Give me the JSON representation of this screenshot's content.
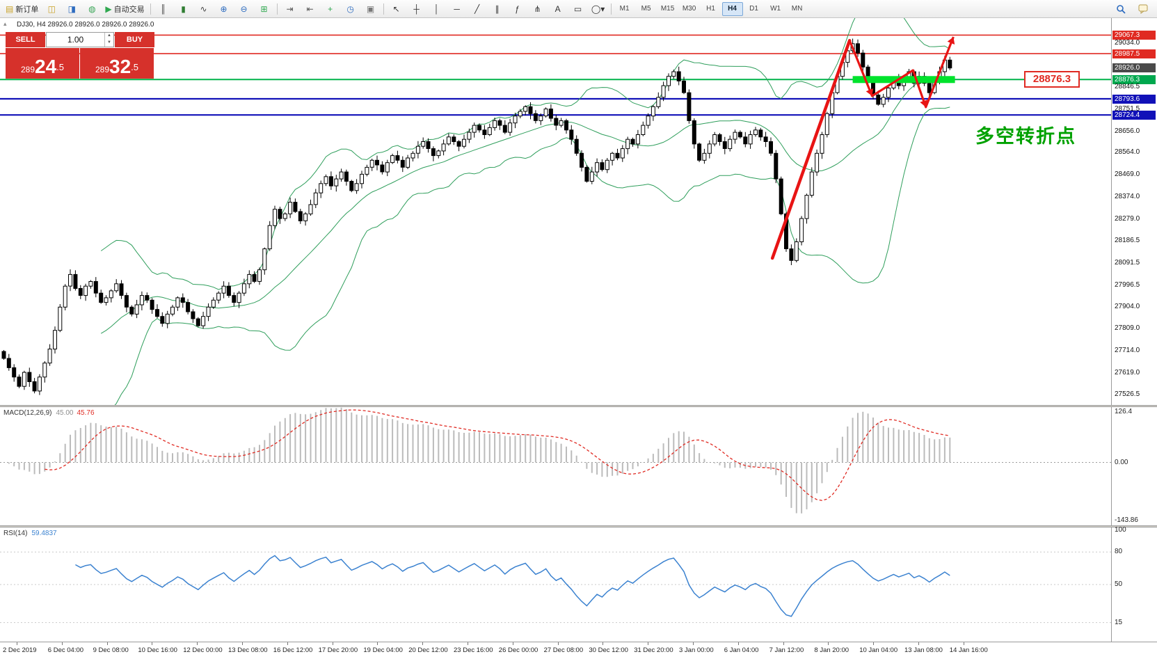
{
  "toolbar": {
    "items_left": [
      {
        "name": "new-order-button",
        "icon": "doc-plus-icon",
        "glyph": "▤",
        "glyph_color": "#c9a227",
        "label": "新订单"
      },
      {
        "name": "chart-window-button",
        "icon": "chart-window-icon",
        "glyph": "◫",
        "glyph_color": "#c9a227"
      },
      {
        "name": "profiles-button",
        "icon": "profiles-icon",
        "glyph": "◨",
        "glyph_color": "#2d6bbf"
      },
      {
        "name": "favorites-button",
        "icon": "favorites-icon",
        "glyph": "◍",
        "glyph_color": "#3aa657"
      },
      {
        "name": "auto-trading-button",
        "icon": "play-icon",
        "glyph": "▶",
        "glyph_color": "#2fa84f",
        "label": "自动交易"
      },
      {
        "sep": true
      },
      {
        "name": "bar-chart-button",
        "icon": "bar-chart-icon",
        "glyph": "║",
        "glyph_color": "#444444"
      },
      {
        "name": "candlestick-button",
        "icon": "candlestick-icon",
        "glyph": "▮",
        "glyph_color": "#2f7d32"
      },
      {
        "name": "line-chart-button",
        "icon": "line-chart-icon",
        "glyph": "∿",
        "glyph_color": "#444444"
      },
      {
        "name": "zoom-in-button",
        "icon": "zoom-in-icon",
        "glyph": "⊕",
        "glyph_color": "#2d6bbf"
      },
      {
        "name": "zoom-out-button",
        "icon": "zoom-out-icon",
        "glyph": "⊖",
        "glyph_color": "#2d6bbf"
      },
      {
        "name": "tile-windows-button",
        "icon": "tile-windows-icon",
        "glyph": "⊞",
        "glyph_color": "#2fa84f"
      },
      {
        "sep": true
      },
      {
        "name": "auto-scroll-button",
        "icon": "auto-scroll-icon",
        "glyph": "⇥",
        "glyph_color": "#555555"
      },
      {
        "name": "chart-shift-button",
        "icon": "chart-shift-icon",
        "glyph": "⇤",
        "glyph_color": "#555555"
      },
      {
        "name": "add-indicator-button",
        "icon": "plus-icon",
        "glyph": "+",
        "glyph_color": "#2fa84f"
      },
      {
        "name": "periods-button",
        "icon": "clock-icon",
        "glyph": "◷",
        "glyph_color": "#2d6bbf"
      },
      {
        "name": "templates-button",
        "icon": "template-icon",
        "glyph": "▣",
        "glyph_color": "#777777"
      },
      {
        "sep": true
      },
      {
        "name": "cursor-button",
        "icon": "cursor-icon",
        "glyph": "↖",
        "glyph_color": "#333333"
      },
      {
        "name": "crosshair-button",
        "icon": "crosshair-icon",
        "glyph": "┼",
        "glyph_color": "#333333"
      },
      {
        "name": "vline-button",
        "icon": "vertical-line-icon",
        "glyph": "│",
        "glyph_color": "#333333"
      },
      {
        "name": "hline-button",
        "icon": "horizontal-line-icon",
        "glyph": "─",
        "glyph_color": "#333333"
      },
      {
        "name": "trendline-button",
        "icon": "trendline-icon",
        "glyph": "╱",
        "glyph_color": "#333333"
      },
      {
        "name": "channel-button",
        "icon": "channel-icon",
        "glyph": "∥",
        "glyph_color": "#333333"
      },
      {
        "name": "fibonacci-button",
        "icon": "fibonacci-icon",
        "glyph": "ƒ",
        "glyph_color": "#333333"
      },
      {
        "name": "pitchfork-button",
        "icon": "pitchfork-icon",
        "glyph": "⋔",
        "glyph_color": "#333333"
      },
      {
        "name": "text-button",
        "icon": "text-icon",
        "glyph": "A",
        "glyph_color": "#333333"
      },
      {
        "name": "label-button",
        "icon": "label-icon",
        "glyph": "▭",
        "glyph_color": "#333333"
      },
      {
        "name": "shapes-button",
        "icon": "shapes-dropdown-icon",
        "glyph": "◯▾",
        "glyph_color": "#333333"
      },
      {
        "sep": true
      }
    ],
    "timeframes": [
      "M1",
      "M5",
      "M15",
      "M30",
      "H1",
      "H4",
      "D1",
      "W1",
      "MN"
    ],
    "active_timeframe": "H4"
  },
  "trade_panel": {
    "sell_label": "SELL",
    "buy_label": "BUY",
    "volume": "1.00",
    "sell_price_small": "289",
    "sell_price_big": "24",
    "sell_price_sup": ".5",
    "buy_price_small": "289",
    "buy_price_big": "32",
    "buy_price_sup": ".5"
  },
  "chart": {
    "symbol_info": "DJ30, H4  28926.0 28926.0 28926.0 28926.0",
    "annotation": {
      "text": "多空转折点",
      "color": "#00a100"
    },
    "price_tag": {
      "text": "28876.3"
    },
    "price_min": 27480,
    "price_max": 29140,
    "closes": [
      27680,
      27640,
      27600,
      27560,
      27620,
      27580,
      27540,
      27600,
      27660,
      27720,
      27800,
      27900,
      27990,
      28040,
      27980,
      27950,
      27990,
      28010,
      27960,
      27920,
      27940,
      27970,
      28000,
      27950,
      27900,
      27870,
      27910,
      27950,
      27930,
      27890,
      27860,
      27830,
      27870,
      27900,
      27940,
      27920,
      27880,
      27850,
      27820,
      27860,
      27900,
      27930,
      27960,
      27990,
      27950,
      27920,
      27960,
      28000,
      28040,
      28010,
      28060,
      28150,
      28250,
      28320,
      28280,
      28300,
      28350,
      28310,
      28270,
      28300,
      28340,
      28390,
      28430,
      28460,
      28420,
      28450,
      28480,
      28440,
      28400,
      28430,
      28470,
      28500,
      28530,
      28510,
      28480,
      28520,
      28550,
      28530,
      28500,
      28540,
      28560,
      28590,
      28610,
      28580,
      28550,
      28570,
      28600,
      28630,
      28610,
      28590,
      28620,
      28650,
      28680,
      28660,
      28640,
      28670,
      28700,
      28680,
      28650,
      28690,
      28720,
      28740,
      28760,
      28730,
      28700,
      28720,
      28750,
      28710,
      28680,
      28700,
      28660,
      28620,
      28560,
      28500,
      28440,
      28480,
      28520,
      28490,
      28530,
      28560,
      28540,
      28580,
      28620,
      28600,
      28640,
      28680,
      28720,
      28760,
      28800,
      28850,
      28890,
      28910,
      28870,
      28820,
      28700,
      28600,
      28530,
      28560,
      28600,
      28640,
      28610,
      28580,
      28620,
      28650,
      28630,
      28600,
      28640,
      28660,
      28630,
      28610,
      28560,
      28450,
      28300,
      28150,
      28100,
      28180,
      28280,
      28380,
      28480,
      28560,
      28640,
      28730,
      28820,
      28890,
      28950,
      29000,
      29030,
      28990,
      28930,
      28870,
      28810,
      28770,
      28800,
      28840,
      28880,
      28850,
      28880,
      28910,
      28860,
      28890,
      28860,
      28820,
      28870,
      28910,
      28960,
      28926
    ],
    "axis_labels": [
      {
        "text": "29067.3",
        "price": 29067.3,
        "type": "red"
      },
      {
        "text": "29034.0",
        "price": 29034.0,
        "type": "normal"
      },
      {
        "text": "28987.5",
        "price": 28987.5,
        "type": "red"
      },
      {
        "text": "28926.0",
        "price": 28926.0,
        "type": "current"
      },
      {
        "text": "28876.3",
        "price": 28876.3,
        "type": "green"
      },
      {
        "text": "28846.5",
        "price": 28846.5,
        "type": "normal"
      },
      {
        "text": "28793.6",
        "price": 28793.6,
        "type": "blue"
      },
      {
        "text": "28751.5",
        "price": 28751.5,
        "type": "normal"
      },
      {
        "text": "28724.4",
        "price": 28724.4,
        "type": "blue"
      },
      {
        "text": "28656.0",
        "price": 28656.0,
        "type": "normal"
      },
      {
        "text": "28564.0",
        "price": 28564.0,
        "type": "normal"
      },
      {
        "text": "28469.0",
        "price": 28469.0,
        "type": "normal"
      },
      {
        "text": "28374.0",
        "price": 28374.0,
        "type": "normal"
      },
      {
        "text": "28279.0",
        "price": 28279.0,
        "type": "normal"
      },
      {
        "text": "28186.5",
        "price": 28186.5,
        "type": "normal"
      },
      {
        "text": "28091.5",
        "price": 28091.5,
        "type": "normal"
      },
      {
        "text": "27996.5",
        "price": 27996.5,
        "type": "normal"
      },
      {
        "text": "27904.0",
        "price": 27904.0,
        "type": "normal"
      },
      {
        "text": "27809.0",
        "price": 27809.0,
        "type": "normal"
      },
      {
        "text": "27714.0",
        "price": 27714.0,
        "type": "normal"
      },
      {
        "text": "27619.0",
        "price": 27619.0,
        "type": "normal"
      },
      {
        "text": "27526.5",
        "price": 27526.5,
        "type": "normal"
      }
    ],
    "hlines": [
      {
        "price": 29067.3,
        "color": "#e02a22",
        "width": 1.6
      },
      {
        "price": 28987.5,
        "color": "#e02a22",
        "width": 1.6
      },
      {
        "price": 28876.3,
        "color": "#00b34a",
        "width": 2
      },
      {
        "price": 28793.6,
        "color": "#1111b8",
        "width": 2.2
      },
      {
        "price": 28724.4,
        "color": "#1111b8",
        "width": 2.2
      }
    ],
    "green_zone": {
      "from_bar": 166,
      "to_bar": 186,
      "price": 28876.3
    },
    "trend_main": [
      [
        150.3,
        28110
      ],
      [
        165.4,
        29044
      ]
    ],
    "zigzag": [
      [
        165.4,
        29044
      ],
      [
        169.8,
        28806
      ],
      [
        177.8,
        28916
      ],
      [
        180.3,
        28758
      ],
      [
        185.7,
        29059
      ]
    ],
    "x_labels": [
      "2 Dec 2019",
      "6 Dec 04:00",
      "9 Dec 08:00",
      "10 Dec 16:00",
      "12 Dec 00:00",
      "13 Dec 08:00",
      "16 Dec 12:00",
      "17 Dec 20:00",
      "19 Dec 04:00",
      "20 Dec 12:00",
      "23 Dec 16:00",
      "26 Dec 00:00",
      "27 Dec 08:00",
      "30 Dec 12:00",
      "31 Dec 20:00",
      "3 Jan 00:00",
      "6 Jan 04:00",
      "7 Jan 12:00",
      "8 Jan 20:00",
      "10 Jan 04:00",
      "13 Jan 08:00",
      "14 Jan 16:00"
    ]
  },
  "macd": {
    "label": "MACD(12,26,9)",
    "value_main": "45.00",
    "value_signal": "45.76",
    "scale_top": "126.4",
    "scale_zero": "0.00",
    "scale_bottom": "-143.86",
    "range_min": -143.86,
    "range_max": 126.4
  },
  "rsi": {
    "label": "RSI(14)",
    "value": "59.4837",
    "scale": [
      "100",
      "80",
      "50",
      "15"
    ],
    "scale_values": [
      100,
      80,
      50,
      15
    ],
    "levels": [
      80,
      50,
      15
    ]
  },
  "colors": {
    "bull": "#ffffff",
    "bear": "#000000",
    "wick": "#000000",
    "bollinger": "#2e9e5b",
    "macd_hist": "#bbbbbb",
    "macd_signal": "#e02a22",
    "rsi_line": "#3b82d0",
    "trend_red": "#e81414",
    "green_zone": "#00e32c"
  }
}
